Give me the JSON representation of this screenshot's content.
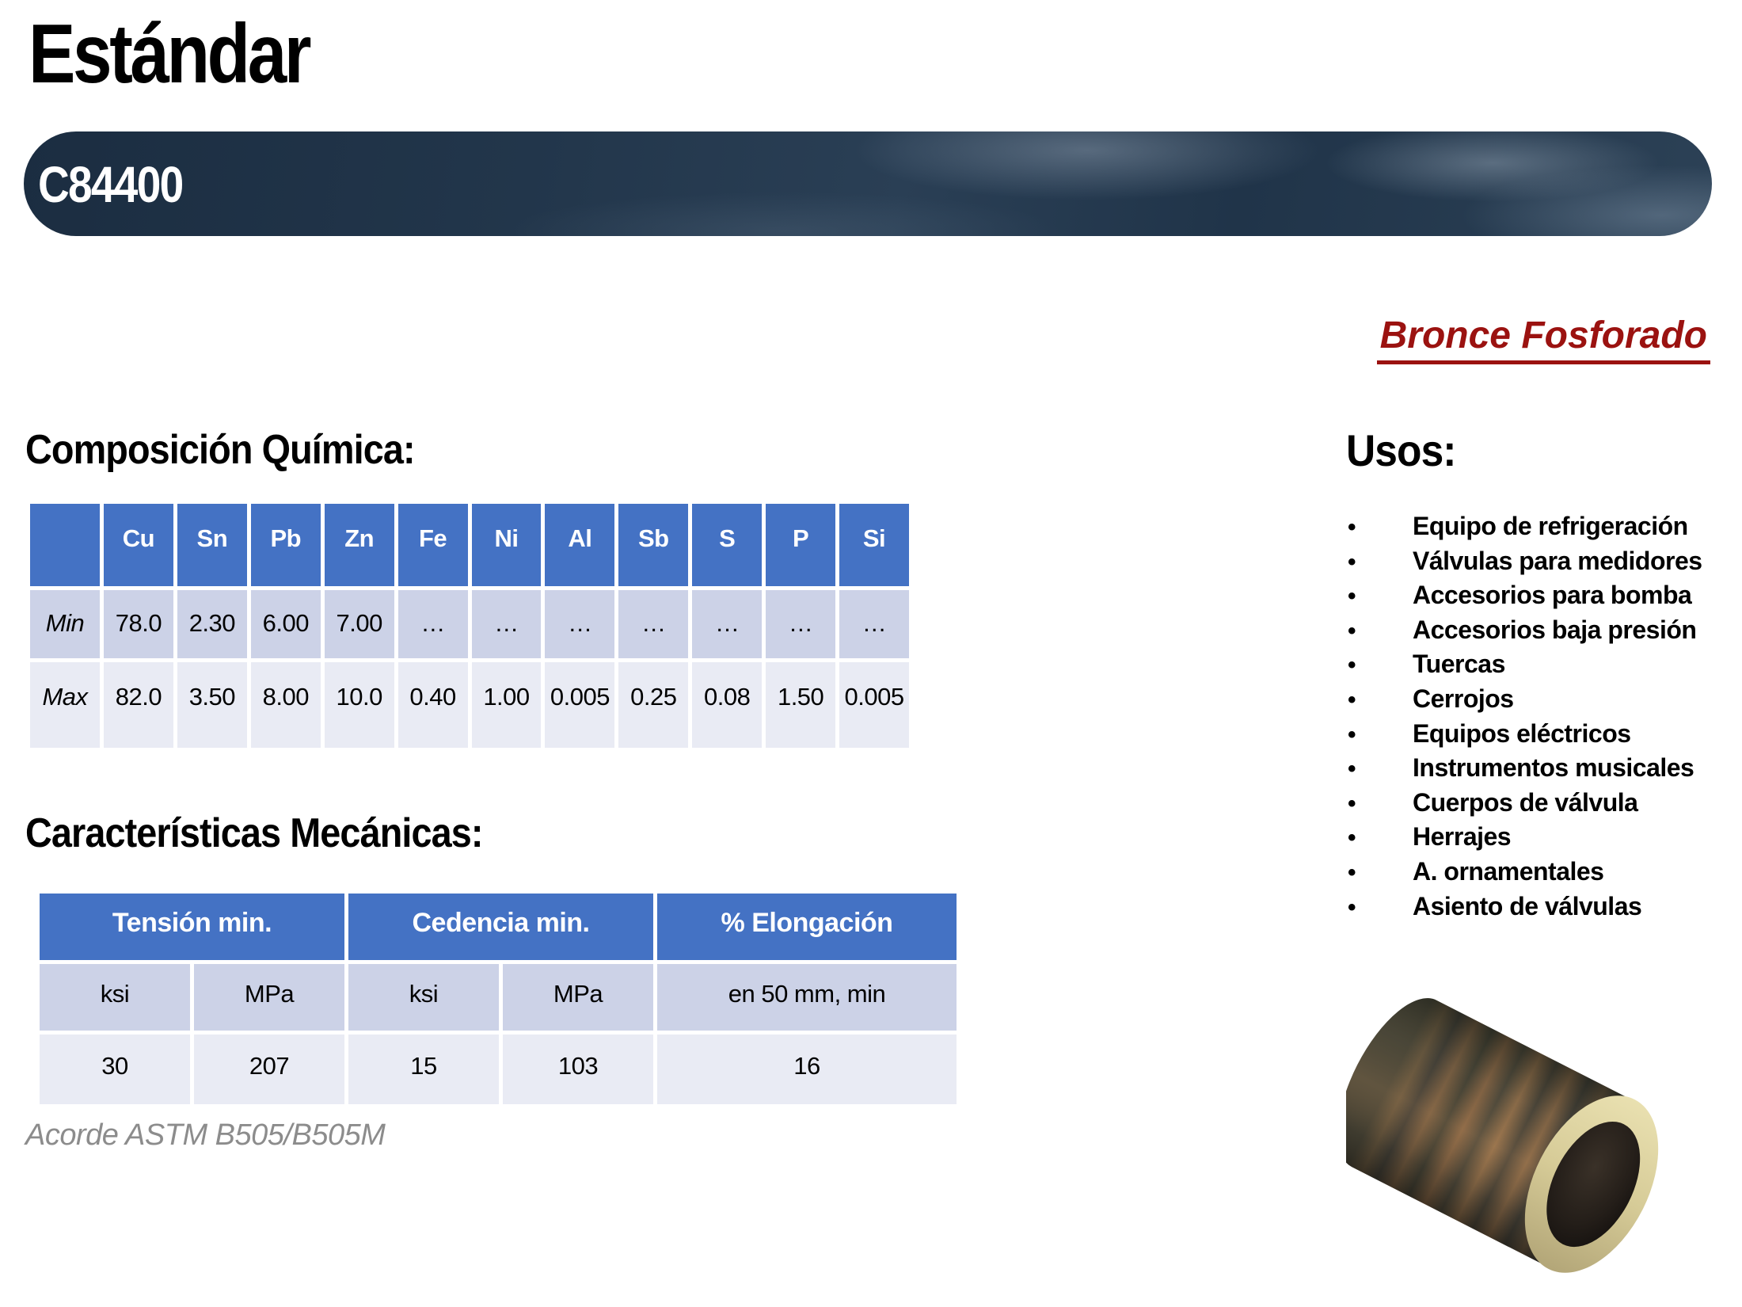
{
  "page": {
    "title": "Estándar",
    "code": "C84400",
    "material": "Bronce Fosforado",
    "note": "Acorde ASTM B505/B505M"
  },
  "composition": {
    "heading": "Composición Química:",
    "columns": [
      "Cu",
      "Sn",
      "Pb",
      "Zn",
      "Fe",
      "Ni",
      "Al",
      "Sb",
      "S",
      "P",
      "Si"
    ],
    "rows": [
      {
        "label": "Min",
        "values": [
          "78.0",
          "2.30",
          "6.00",
          "7.00",
          "…",
          "…",
          "…",
          "…",
          "…",
          "…",
          "…"
        ]
      },
      {
        "label": "Max",
        "values": [
          "82.0",
          "3.50",
          "8.00",
          "10.0",
          "0.40",
          "1.00",
          "0.005",
          "0.25",
          "0.08",
          "1.50",
          "0.005"
        ]
      }
    ]
  },
  "mechanical": {
    "heading": "Características Mecánicas:",
    "groups": [
      {
        "label": "Tensión min.",
        "span": 2
      },
      {
        "label": "Cedencia min.",
        "span": 2
      },
      {
        "label": "% Elongación",
        "span": 1
      }
    ],
    "subheaders": [
      "ksi",
      "MPa",
      "ksi",
      "MPa",
      "en 50 mm, min"
    ],
    "values": [
      "30",
      "207",
      "15",
      "103",
      "16"
    ]
  },
  "usos": {
    "heading": "Usos:",
    "bullet": "•",
    "items": [
      "Equipo de refrigeración",
      "Válvulas para medidores",
      "Accesorios para bomba",
      "Accesorios baja presión",
      "Tuercas",
      "Cerrojos",
      "Equipos eléctricos",
      "Instrumentos musicales",
      "Cuerpos de válvula",
      "Herrajes",
      "A. ornamentales",
      "Asiento de válvulas"
    ]
  },
  "colors": {
    "table_header_blue": "#4472c4",
    "row_band_dark": "#ccd2e7",
    "row_band_light": "#e9ebf4",
    "accent_red": "#9b1210",
    "banner_navy": "#22364b",
    "note_gray": "#8c8c8c"
  }
}
